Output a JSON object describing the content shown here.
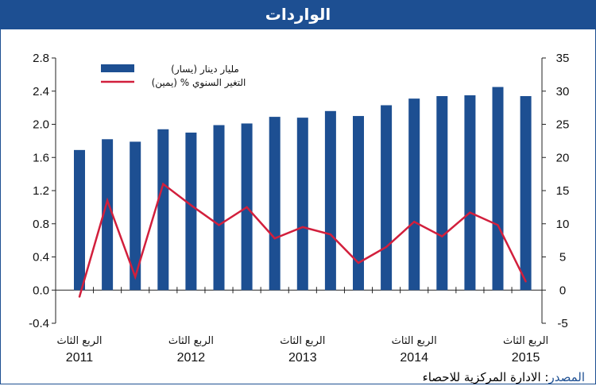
{
  "header": {
    "title": "الواردات"
  },
  "footer": {
    "source_label": "المصدر",
    "source_text": ": الادارة المركزية للاحصاء"
  },
  "chart_data": {
    "type": "bar+line",
    "x": [
      "2011 Q3",
      "2011 Q4",
      "2012 Q1",
      "2012 Q2",
      "2012 Q3",
      "2012 Q4",
      "2013 Q1",
      "2013 Q2",
      "2013 Q3",
      "2013 Q4",
      "2014 Q1",
      "2014 Q2",
      "2014 Q3",
      "2014 Q4",
      "2015 Q1",
      "2015 Q2",
      "2015 Q3"
    ],
    "series": [
      {
        "name": "مليار دينار (يسار)",
        "type": "bar",
        "axis": "left",
        "color": "#1d4f92",
        "values": [
          1.69,
          1.82,
          1.79,
          1.94,
          1.9,
          1.99,
          2.01,
          2.09,
          2.08,
          2.16,
          2.1,
          2.23,
          2.31,
          2.34,
          2.35,
          2.45,
          2.34
        ]
      },
      {
        "name": "التغير السنوي % (يمين)",
        "type": "line",
        "axis": "right",
        "color": "#d21f3c",
        "values": [
          -1.0,
          13.5,
          2.0,
          16.0,
          12.8,
          9.8,
          12.5,
          7.8,
          9.5,
          8.4,
          4.1,
          6.5,
          10.3,
          8.1,
          11.7,
          9.8,
          1.3
        ]
      }
    ],
    "left_axis": {
      "min": -0.4,
      "max": 2.8,
      "ticks": [
        "2.8",
        "2.4",
        "2.0",
        "1.6",
        "1.2",
        "0.8",
        "0.4",
        "0.0",
        "-0.4"
      ]
    },
    "right_axis": {
      "min": -5,
      "max": 35,
      "ticks": [
        "35",
        "30",
        "25",
        "20",
        "15",
        "10",
        "5",
        "0",
        "-5"
      ]
    },
    "x_labels": [
      {
        "index": 0,
        "line1": "الربع الثاث",
        "line2": "2011"
      },
      {
        "index": 4,
        "line1": "الربع الثاث",
        "line2": "2012"
      },
      {
        "index": 8,
        "line1": "الربع الثاث",
        "line2": "2013"
      },
      {
        "index": 12,
        "line1": "الربع الثاث",
        "line2": "2014"
      },
      {
        "index": 16,
        "line1": "الربع الثاث",
        "line2": "2015"
      }
    ],
    "legend_placement": "top-left",
    "grid": false
  }
}
